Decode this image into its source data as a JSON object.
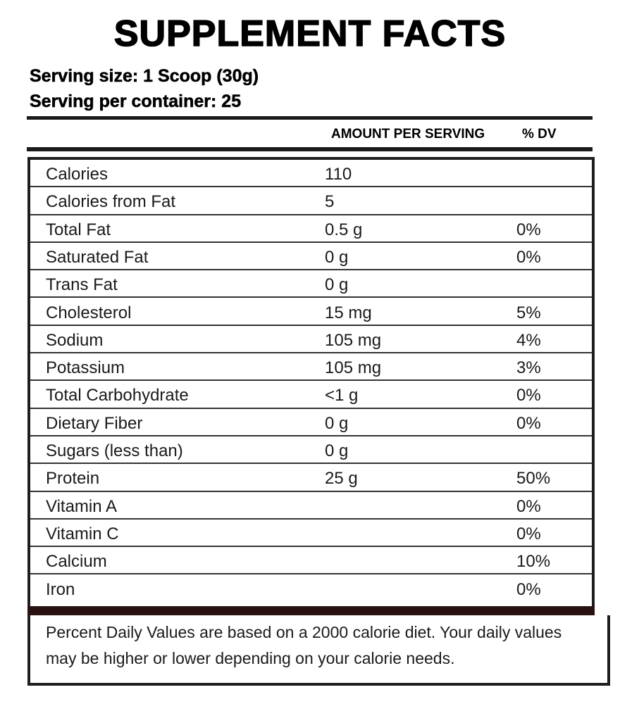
{
  "title": "SUPPLEMENT FACTS",
  "serving_size": "Serving size: 1 Scoop (30g)",
  "servings_per_container": "Serving per container: 25",
  "columns": {
    "amount": "AMOUNT PER SERVING",
    "dv": "% DV"
  },
  "rows": [
    {
      "nutrient": "Calories",
      "amount": "110"
    },
    {
      "nutrient": "Calories from Fat",
      "amount": "5"
    },
    {
      "nutrient": "Total Fat",
      "amount": "0.5 g",
      "dv": "0%"
    },
    {
      "nutrient": "Saturated Fat",
      "amount": "0 g",
      "dv": "0%"
    },
    {
      "nutrient": "Trans Fat",
      "amount": "0 g"
    },
    {
      "nutrient": "Cholesterol",
      "amount": "15 mg",
      "dv": "5%"
    },
    {
      "nutrient": "Sodium",
      "amount": "105 mg",
      "dv": "4%"
    },
    {
      "nutrient": "Potassium",
      "amount": "105 mg",
      "dv": "3%"
    },
    {
      "nutrient": "Total Carbohydrate",
      "amount": "<1 g",
      "dv": "0%"
    },
    {
      "nutrient": "Dietary Fiber",
      "amount": "0 g",
      "dv": "0%"
    },
    {
      "nutrient": "Sugars (less than)",
      "amount": "0 g"
    },
    {
      "nutrient": "Protein",
      "amount": "25 g",
      "dv": "50%"
    },
    {
      "nutrient": "Vitamin A",
      "dv": "0%"
    },
    {
      "nutrient": "Vitamin C",
      "dv": "0%"
    },
    {
      "nutrient": "Calcium",
      "dv": "10%"
    },
    {
      "nutrient": "Iron",
      "dv": "0%"
    }
  ],
  "footnote": "Percent Daily Values are based on a 2000 calorie diet. Your daily values may be higher or lower depending on your calorie needs."
}
